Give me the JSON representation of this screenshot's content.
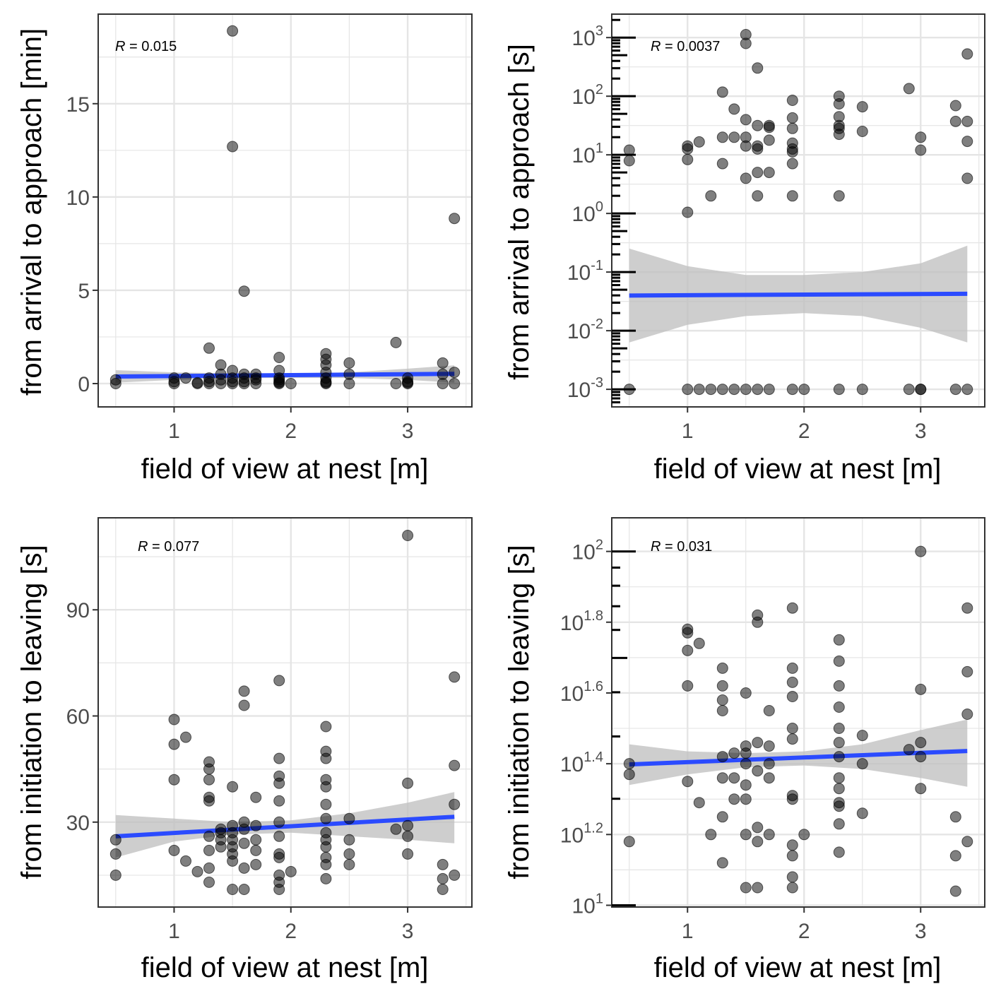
{
  "colors": {
    "points": "#000000",
    "fit_line": "#2b4bff",
    "ci_band": "#bdbdbd",
    "grid": "#e5e5e5",
    "panel_border": "#333333"
  },
  "chart_data": [
    {
      "type": "scatter",
      "xlabel": "field of view at nest [m]",
      "ylabel": "from arrival to approach [min]",
      "annotation": {
        "R_symbol": "R",
        "text": " = 0.015"
      },
      "xlim": [
        0.35,
        3.55
      ],
      "xticks": [
        1,
        2,
        3
      ],
      "xticklabels": [
        "1",
        "2",
        "3"
      ],
      "ylim": [
        -1.25,
        19.8
      ],
      "yscale": "linear",
      "yticks": [
        0,
        5,
        10,
        15
      ],
      "yticklabels": [
        "0",
        "5",
        "10",
        "15"
      ],
      "fit": {
        "x": [
          0.5,
          3.4
        ],
        "y": [
          0.38,
          0.52
        ]
      },
      "ci": {
        "x": [
          0.5,
          1.0,
          1.5,
          2.0,
          2.5,
          3.0,
          3.4
        ],
        "lower": [
          0.05,
          0.2,
          0.3,
          0.3,
          0.3,
          0.2,
          0.05
        ],
        "upper": [
          0.72,
          0.6,
          0.55,
          0.55,
          0.6,
          0.8,
          0.98
        ]
      },
      "points": {
        "x": [
          0.5,
          0.5,
          1.0,
          1.0,
          1.0,
          1.1,
          1.2,
          1.2,
          1.3,
          1.3,
          1.3,
          1.3,
          1.4,
          1.4,
          1.4,
          1.4,
          1.5,
          1.5,
          1.5,
          1.5,
          1.5,
          1.5,
          1.6,
          1.6,
          1.6,
          1.6,
          1.6,
          1.7,
          1.7,
          1.7,
          1.7,
          1.9,
          1.9,
          1.9,
          1.9,
          1.9,
          1.9,
          1.9,
          2.0,
          2.3,
          2.3,
          2.3,
          2.3,
          2.3,
          2.3,
          2.3,
          2.3,
          2.5,
          2.5,
          2.5,
          2.9,
          2.9,
          3.0,
          3.0,
          3.0,
          3.0,
          3.3,
          3.3,
          3.3,
          3.4,
          3.4,
          3.4
        ],
        "y": [
          0.0,
          0.2,
          0.0,
          0.1,
          0.3,
          0.3,
          0.0,
          0.05,
          1.9,
          0.3,
          0.0,
          0.1,
          1.0,
          0.5,
          0.0,
          0.2,
          18.9,
          12.7,
          0.0,
          0.7,
          0.3,
          0.1,
          4.95,
          0.5,
          0.0,
          0.3,
          0.1,
          0.5,
          0.0,
          0.2,
          0.3,
          1.4,
          0.7,
          0.3,
          0.0,
          0.1,
          0.2,
          0.05,
          0.0,
          1.6,
          1.3,
          1.0,
          0.6,
          0.3,
          0.0,
          0.1,
          0.05,
          1.1,
          0.5,
          0.0,
          2.2,
          0.0,
          0.3,
          0.0,
          0.1,
          0.05,
          1.1,
          0.5,
          0.0,
          8.85,
          0.6,
          0.0
        ]
      }
    },
    {
      "type": "scatter",
      "xlabel": "field of view at nest [m]",
      "ylabel": "from arrival to approach [s]",
      "annotation": {
        "R_symbol": "R",
        "text": " = 0.0037"
      },
      "xlim": [
        0.35,
        3.55
      ],
      "xticks": [
        1,
        2,
        3
      ],
      "xticklabels": [
        "1",
        "2",
        "3"
      ],
      "ylim": [
        -3.3,
        3.4
      ],
      "yscale": "log10",
      "yticks": [
        -3,
        -2,
        -1,
        0,
        1,
        2,
        3
      ],
      "yticklabels": [
        {
          "base": "10",
          "exp": "-3"
        },
        {
          "base": "10",
          "exp": "-2"
        },
        {
          "base": "10",
          "exp": "-1"
        },
        {
          "base": "10",
          "exp": "0"
        },
        {
          "base": "10",
          "exp": "1"
        },
        {
          "base": "10",
          "exp": "2"
        },
        {
          "base": "10",
          "exp": "3"
        }
      ],
      "fit": {
        "x": [
          0.5,
          3.4
        ],
        "y": [
          -1.4,
          -1.37
        ]
      },
      "ci": {
        "x": [
          0.5,
          1.0,
          1.5,
          2.0,
          2.5,
          3.0,
          3.4
        ],
        "lower": [
          -2.2,
          -1.9,
          -1.75,
          -1.7,
          -1.75,
          -1.95,
          -2.2
        ],
        "upper": [
          -0.6,
          -0.9,
          -1.05,
          -1.05,
          -1.0,
          -0.85,
          -0.55
        ]
      },
      "points": {
        "x": [
          0.5,
          0.5,
          0.5,
          1.0,
          1.0,
          1.0,
          1.0,
          1.0,
          1.1,
          1.1,
          1.2,
          1.2,
          1.3,
          1.3,
          1.3,
          1.3,
          1.4,
          1.4,
          1.4,
          1.5,
          1.5,
          1.5,
          1.5,
          1.5,
          1.5,
          1.5,
          1.6,
          1.6,
          1.6,
          1.6,
          1.6,
          1.6,
          1.6,
          1.7,
          1.7,
          1.7,
          1.7,
          1.7,
          1.9,
          1.9,
          1.9,
          1.9,
          1.9,
          1.9,
          1.9,
          1.9,
          1.9,
          2.0,
          2.3,
          2.3,
          2.3,
          2.3,
          2.3,
          2.3,
          2.3,
          2.3,
          2.5,
          2.5,
          2.5,
          2.9,
          2.9,
          3.0,
          3.0,
          3.0,
          3.0,
          3.3,
          3.3,
          3.3,
          3.4,
          3.4,
          3.4,
          3.4,
          3.4
        ],
        "y": [
          1.08,
          0.9,
          -3,
          1.1,
          1.15,
          0.92,
          0.02,
          -3,
          1.22,
          -3,
          0.3,
          -3,
          2.07,
          1.3,
          0.85,
          -3,
          1.78,
          1.3,
          -3,
          3.05,
          2.9,
          1.6,
          1.15,
          0.6,
          1.3,
          -3,
          2.48,
          1.5,
          1.1,
          1.15,
          0.7,
          0.3,
          -3,
          1.5,
          1.47,
          1.25,
          0.7,
          -3,
          1.93,
          1.63,
          1.45,
          1.2,
          1.05,
          1.1,
          0.85,
          0.3,
          -3,
          -3,
          2.0,
          1.87,
          1.65,
          1.5,
          1.45,
          1.35,
          0.3,
          -3,
          1.82,
          1.4,
          -3,
          2.13,
          -3,
          1.3,
          1.08,
          -3,
          -3,
          1.84,
          1.57,
          -3,
          2.72,
          1.57,
          1.23,
          0.6,
          -3
        ]
      }
    },
    {
      "type": "scatter",
      "xlabel": "field of view at nest [m]",
      "ylabel": "from initiation to leaving [s]",
      "annotation": {
        "R_symbol": "R",
        "text": " = 0.077"
      },
      "xlim": [
        0.35,
        3.55
      ],
      "xticks": [
        1,
        2,
        3
      ],
      "xticklabels": [
        "1",
        "2",
        "3"
      ],
      "ylim": [
        6,
        116
      ],
      "yscale": "linear",
      "yticks": [
        30,
        60,
        90
      ],
      "yticklabels": [
        "30",
        "60",
        "90"
      ],
      "fit": {
        "x": [
          0.5,
          3.4
        ],
        "y": [
          26,
          31.5
        ]
      },
      "ci": {
        "x": [
          0.5,
          1.0,
          1.5,
          2.0,
          2.5,
          3.0,
          3.4
        ],
        "lower": [
          20,
          24.5,
          26.5,
          27,
          26,
          25,
          24
        ],
        "upper": [
          32,
          31,
          30,
          30.5,
          32.5,
          35.5,
          38.5
        ]
      },
      "points": {
        "x": [
          0.5,
          0.5,
          0.5,
          1.0,
          1.0,
          1.0,
          1.0,
          1.1,
          1.1,
          1.2,
          1.3,
          1.3,
          1.3,
          1.3,
          1.3,
          1.3,
          1.3,
          1.3,
          1.3,
          1.4,
          1.4,
          1.4,
          1.4,
          1.5,
          1.5,
          1.5,
          1.5,
          1.5,
          1.5,
          1.5,
          1.5,
          1.6,
          1.6,
          1.6,
          1.6,
          1.6,
          1.6,
          1.6,
          1.7,
          1.7,
          1.7,
          1.7,
          1.7,
          1.9,
          1.9,
          1.9,
          1.9,
          1.9,
          1.9,
          1.9,
          1.9,
          1.9,
          1.9,
          1.9,
          1.9,
          2.0,
          2.3,
          2.3,
          2.3,
          2.3,
          2.3,
          2.3,
          2.3,
          2.3,
          2.3,
          2.3,
          2.3,
          2.3,
          2.3,
          2.5,
          2.5,
          2.5,
          2.5,
          2.9,
          3.0,
          3.0,
          3.0,
          3.0,
          3.0,
          3.3,
          3.3,
          3.3,
          3.4,
          3.4,
          3.4,
          3.4
        ],
        "y": [
          25,
          21,
          15,
          59,
          52,
          42,
          22,
          54,
          19,
          16,
          47,
          45,
          42,
          37,
          36,
          26,
          22,
          17,
          13,
          28,
          27,
          25,
          23,
          40,
          29,
          27,
          25,
          23,
          21,
          19,
          11,
          67,
          63,
          30,
          28,
          24,
          17,
          11,
          37,
          29,
          25,
          22,
          18,
          70,
          48,
          43,
          41,
          36,
          30,
          26,
          21,
          20,
          15,
          13,
          11,
          16,
          57,
          50,
          48,
          42,
          40,
          35,
          31,
          27,
          25,
          23,
          20,
          18,
          14,
          31,
          25,
          21,
          18,
          28,
          111,
          41,
          29,
          26,
          21,
          18,
          14,
          11,
          71,
          46,
          35,
          15
        ]
      }
    },
    {
      "type": "scatter",
      "xlabel": "field of view at nest [m]",
      "ylabel": "from initiation to leaving [s]",
      "annotation": {
        "R_symbol": "R",
        "text": " = 0.031"
      },
      "xlim": [
        0.35,
        3.55
      ],
      "xticks": [
        1,
        2,
        3
      ],
      "xticklabels": [
        "1",
        "2",
        "3"
      ],
      "ylim": [
        0.995,
        2.095
      ],
      "yscale": "log10",
      "yticks": [
        1,
        1.2,
        1.4,
        1.6,
        1.8,
        2
      ],
      "yticklabels": [
        {
          "base": "10",
          "exp": "1"
        },
        {
          "base": "10",
          "exp": "1.2"
        },
        {
          "base": "10",
          "exp": "1.4"
        },
        {
          "base": "10",
          "exp": "1.6"
        },
        {
          "base": "10",
          "exp": "1.8"
        },
        {
          "base": "10",
          "exp": "2"
        }
      ],
      "fit": {
        "x": [
          0.5,
          3.4
        ],
        "y": [
          1.398,
          1.436
        ]
      },
      "ci": {
        "x": [
          0.5,
          1.0,
          1.5,
          2.0,
          2.5,
          3.0,
          3.4
        ],
        "lower": [
          1.34,
          1.37,
          1.39,
          1.395,
          1.385,
          1.36,
          1.335
        ],
        "upper": [
          1.455,
          1.435,
          1.43,
          1.435,
          1.455,
          1.495,
          1.525
        ]
      },
      "points": {
        "x": [
          0.5,
          0.5,
          0.5,
          1.0,
          1.0,
          1.0,
          1.0,
          1.0,
          1.1,
          1.1,
          1.2,
          1.3,
          1.3,
          1.3,
          1.3,
          1.3,
          1.3,
          1.3,
          1.3,
          1.4,
          1.4,
          1.4,
          1.5,
          1.5,
          1.5,
          1.5,
          1.5,
          1.5,
          1.5,
          1.5,
          1.6,
          1.6,
          1.6,
          1.6,
          1.6,
          1.6,
          1.6,
          1.7,
          1.7,
          1.7,
          1.7,
          1.7,
          1.9,
          1.9,
          1.9,
          1.9,
          1.9,
          1.9,
          1.9,
          1.9,
          1.9,
          1.9,
          1.9,
          1.9,
          2.0,
          2.3,
          2.3,
          2.3,
          2.3,
          2.3,
          2.3,
          2.3,
          2.3,
          2.3,
          2.3,
          2.3,
          2.3,
          2.3,
          2.5,
          2.5,
          2.5,
          2.9,
          3.0,
          3.0,
          3.0,
          3.0,
          3.0,
          3.3,
          3.3,
          3.3,
          3.4,
          3.4,
          3.4,
          3.4
        ],
        "y": [
          1.4,
          1.37,
          1.18,
          1.77,
          1.72,
          1.62,
          1.35,
          1.78,
          1.74,
          1.29,
          1.2,
          1.67,
          1.62,
          1.58,
          1.55,
          1.42,
          1.36,
          1.25,
          1.12,
          1.43,
          1.36,
          1.3,
          1.45,
          1.6,
          1.4,
          1.34,
          1.2,
          1.05,
          1.43,
          1.3,
          1.82,
          1.8,
          1.46,
          1.38,
          1.22,
          1.18,
          1.05,
          1.55,
          1.45,
          1.4,
          1.36,
          1.2,
          1.84,
          1.67,
          1.63,
          1.59,
          1.5,
          1.47,
          1.31,
          1.17,
          1.14,
          1.08,
          1.05,
          1.3,
          1.2,
          1.75,
          1.69,
          1.62,
          1.56,
          1.5,
          1.46,
          1.42,
          1.36,
          1.33,
          1.29,
          1.23,
          1.15,
          1.28,
          1.48,
          1.4,
          1.26,
          1.44,
          2.0,
          1.61,
          1.46,
          1.42,
          1.33,
          1.25,
          1.14,
          1.04,
          1.84,
          1.66,
          1.54,
          1.18
        ]
      }
    }
  ]
}
